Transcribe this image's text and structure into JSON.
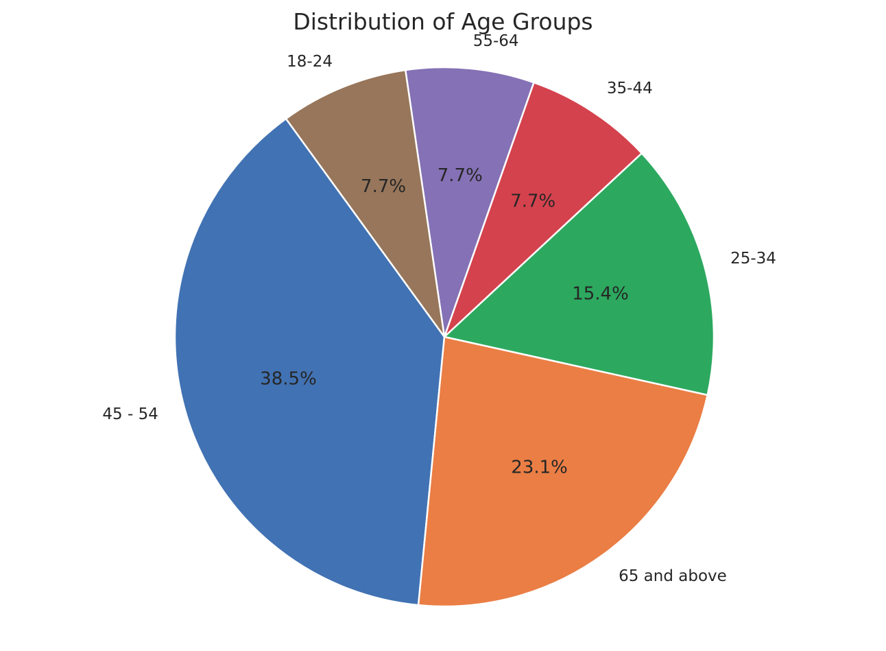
{
  "chart_data": {
    "type": "pie",
    "title": "Distribution of Age Groups",
    "slices": [
      {
        "label": "45 - 54",
        "value": 38.5,
        "pct_label": "38.5%",
        "color": "#4172b3"
      },
      {
        "label": "65 and above",
        "value": 23.1,
        "pct_label": "23.1%",
        "color": "#ea7e45"
      },
      {
        "label": "25-34",
        "value": 15.4,
        "pct_label": "15.4%",
        "color": "#2ca95f"
      },
      {
        "label": "35-44",
        "value": 7.7,
        "pct_label": "7.7%",
        "color": "#d4424d"
      },
      {
        "label": "55-64",
        "value": 7.7,
        "pct_label": "7.7%",
        "color": "#8571b5"
      },
      {
        "label": "18-24",
        "value": 7.7,
        "pct_label": "7.7%",
        "color": "#97765b"
      }
    ],
    "start_angle_deg": 126,
    "direction": "counterclockwise",
    "legend": "none"
  }
}
